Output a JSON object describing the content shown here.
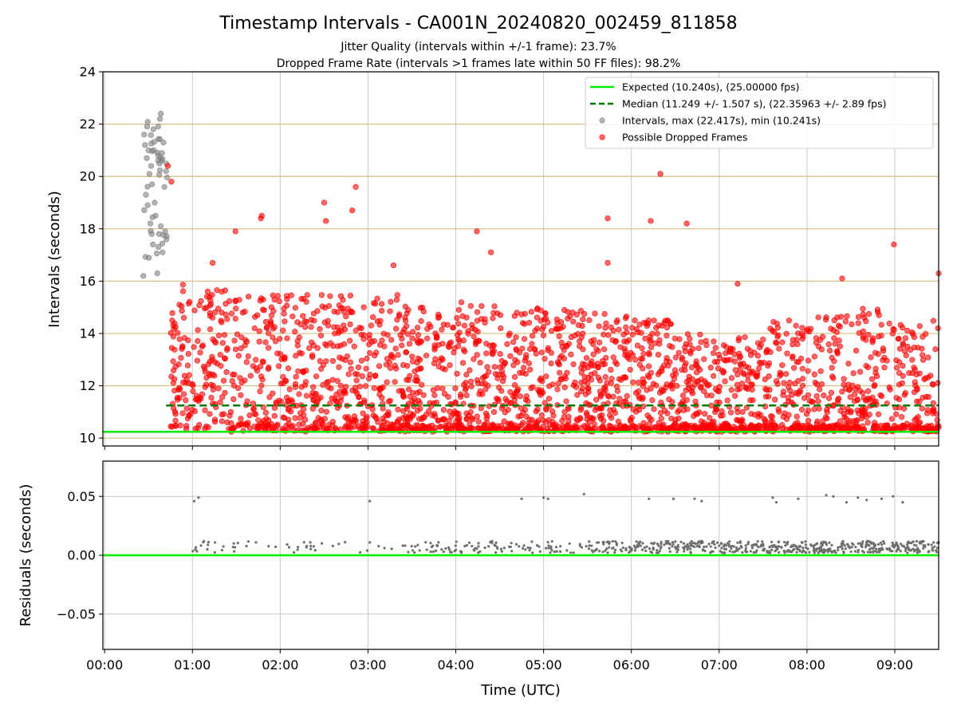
{
  "chart_data": [
    {
      "type": "scatter",
      "title": "Timestamp Intervals - CA001N_20240820_002459_811858",
      "subtitle_lines": [
        "Jitter Quality (intervals within +/-1 frame): 23.7%",
        "Dropped Frame Rate (intervals >1 frames late within 50 FF files): 98.2%"
      ],
      "xlabel": "",
      "ylabel": "Intervals (seconds)",
      "x_unit": "hours UTC",
      "xlim": [
        -0.02,
        9.5
      ],
      "ylim": [
        9.7,
        24
      ],
      "yticks": [
        10,
        12,
        14,
        16,
        18,
        20,
        22,
        24
      ],
      "xticks": [
        0,
        1,
        2,
        3,
        4,
        5,
        6,
        7,
        8,
        9
      ],
      "grid": "horizontal-tan",
      "legend_placement": "top-right",
      "expected_interval": 10.24,
      "median_interval": 11.249,
      "colors": {
        "expected": "#00ee00",
        "median": "#007a00",
        "intervals": "#808080",
        "dropped": "#ff0000",
        "grid_h": "#d6c28a",
        "grid_v": "#c8c8c8"
      },
      "legend": [
        {
          "label": "Expected (10.240s), (25.00000 fps)",
          "kind": "line",
          "color": "#00ee00"
        },
        {
          "label": "Median (11.249 +/- 1.507 s), (22.35963 +/- 2.89 fps)",
          "kind": "dashed",
          "color": "#007a00"
        },
        {
          "label": "Intervals, max (22.417s), min (10.241s)",
          "kind": "dot",
          "color": "#808080"
        },
        {
          "label": "Possible Dropped Frames",
          "kind": "dot",
          "color": "#ff0000"
        }
      ],
      "series": [
        {
          "name": "Intervals",
          "x_range": [
            0.44,
            0.72
          ],
          "y_range": [
            16.2,
            22.4
          ],
          "points": [
            [
              0.44,
              16.2
            ],
            [
              0.45,
              21.6
            ],
            [
              0.46,
              21.2
            ],
            [
              0.47,
              19.3
            ],
            [
              0.48,
              20.7
            ],
            [
              0.49,
              18.9
            ],
            [
              0.5,
              21.0
            ],
            [
              0.51,
              20.1
            ],
            [
              0.52,
              18.2
            ],
            [
              0.53,
              20.4
            ],
            [
              0.54,
              19.7
            ],
            [
              0.55,
              17.4
            ],
            [
              0.56,
              21.0
            ],
            [
              0.57,
              19.0
            ],
            [
              0.58,
              18.5
            ],
            [
              0.6,
              16.3
            ],
            [
              0.61,
              20.8
            ],
            [
              0.62,
              17.8
            ],
            [
              0.63,
              22.2
            ],
            [
              0.64,
              22.4
            ],
            [
              0.65,
              20.6
            ],
            [
              0.66,
              17.1
            ],
            [
              0.67,
              21.3
            ],
            [
              0.68,
              19.6
            ],
            [
              0.7,
              20.2
            ]
          ]
        },
        {
          "name": "Possible Dropped Frames",
          "x_range": [
            0.7,
            9.5
          ],
          "y_range": [
            10.24,
            20.4
          ],
          "notable_points": [
            [
              0.72,
              20.4
            ],
            [
              0.76,
              19.8
            ],
            [
              1.23,
              16.7
            ],
            [
              1.49,
              17.9
            ],
            [
              1.78,
              18.4
            ],
            [
              1.79,
              18.5
            ],
            [
              2.5,
              19.0
            ],
            [
              2.52,
              18.3
            ],
            [
              2.82,
              18.7
            ],
            [
              2.86,
              19.6
            ],
            [
              3.29,
              16.6
            ],
            [
              4.24,
              17.9
            ],
            [
              4.4,
              17.1
            ],
            [
              5.73,
              18.4
            ],
            [
              5.73,
              16.7
            ],
            [
              6.22,
              18.3
            ],
            [
              6.33,
              20.1
            ],
            [
              6.63,
              18.2
            ],
            [
              7.21,
              15.9
            ],
            [
              8.4,
              16.1
            ],
            [
              8.99,
              17.4
            ],
            [
              9.5,
              16.3
            ]
          ],
          "density": [
            {
              "x0": 0.75,
              "x1": 1.0,
              "ymin": 10.3,
              "ymax": 16.0,
              "count": 70
            },
            {
              "x0": 1.0,
              "x1": 1.5,
              "ymin": 10.24,
              "ymax": 15.8,
              "count": 120
            },
            {
              "x0": 1.5,
              "x1": 2.0,
              "ymin": 10.24,
              "ymax": 15.5,
              "count": 110
            },
            {
              "x0": 2.0,
              "x1": 2.5,
              "ymin": 10.24,
              "ymax": 15.6,
              "count": 125
            },
            {
              "x0": 2.5,
              "x1": 3.0,
              "ymin": 10.24,
              "ymax": 15.5,
              "count": 130
            },
            {
              "x0": 3.0,
              "x1": 3.5,
              "ymin": 10.24,
              "ymax": 15.5,
              "count": 135
            },
            {
              "x0": 3.5,
              "x1": 4.0,
              "ymin": 10.24,
              "ymax": 15.0,
              "count": 125
            },
            {
              "x0": 4.0,
              "x1": 4.5,
              "ymin": 10.24,
              "ymax": 15.2,
              "count": 130
            },
            {
              "x0": 4.5,
              "x1": 5.0,
              "ymin": 10.24,
              "ymax": 15.0,
              "count": 125
            },
            {
              "x0": 5.0,
              "x1": 5.5,
              "ymin": 10.24,
              "ymax": 15.0,
              "count": 120
            },
            {
              "x0": 5.5,
              "x1": 6.0,
              "ymin": 10.24,
              "ymax": 14.8,
              "count": 130
            },
            {
              "x0": 6.0,
              "x1": 6.5,
              "ymin": 10.24,
              "ymax": 14.5,
              "count": 130
            },
            {
              "x0": 6.5,
              "x1": 7.0,
              "ymin": 10.24,
              "ymax": 14.0,
              "count": 115
            },
            {
              "x0": 7.0,
              "x1": 7.5,
              "ymin": 10.24,
              "ymax": 14.0,
              "count": 105
            },
            {
              "x0": 7.5,
              "x1": 8.0,
              "ymin": 10.24,
              "ymax": 14.5,
              "count": 100
            },
            {
              "x0": 8.0,
              "x1": 8.5,
              "ymin": 10.24,
              "ymax": 14.7,
              "count": 100
            },
            {
              "x0": 8.5,
              "x1": 9.0,
              "ymin": 10.24,
              "ymax": 15.0,
              "count": 100
            },
            {
              "x0": 9.0,
              "x1": 9.5,
              "ymin": 10.24,
              "ymax": 14.5,
              "count": 95
            }
          ],
          "baseline_band": {
            "x0": 1.0,
            "x1": 9.5,
            "y0": 10.24,
            "y1": 10.5,
            "count": 520
          }
        }
      ]
    },
    {
      "type": "scatter",
      "title": "",
      "xlabel": "Time (UTC)",
      "ylabel": "Residuals (seconds)",
      "xlim": [
        -0.02,
        9.5
      ],
      "ylim": [
        -0.08,
        0.08
      ],
      "yticks": [
        0.05,
        0.0,
        -0.05
      ],
      "ytick_labels": [
        "0.05",
        "0.00",
        "−0.05"
      ],
      "xticks": [
        0,
        1,
        2,
        3,
        4,
        5,
        6,
        7,
        8,
        9
      ],
      "xtick_labels": [
        "00:00",
        "01:00",
        "02:00",
        "03:00",
        "04:00",
        "05:00",
        "06:00",
        "07:00",
        "08:00",
        "09:00"
      ],
      "grid": "both-gray",
      "zero_line": 0.0,
      "series": [
        {
          "name": "Residuals",
          "color": "#6e6e6e",
          "outliers": [
            [
              1.02,
              0.046
            ],
            [
              1.07,
              0.049
            ],
            [
              3.02,
              0.046
            ],
            [
              4.75,
              0.048
            ],
            [
              5.0,
              0.049
            ],
            [
              5.05,
              0.048
            ],
            [
              5.46,
              0.052
            ],
            [
              6.2,
              0.048
            ],
            [
              6.48,
              0.048
            ],
            [
              6.72,
              0.048
            ],
            [
              6.8,
              0.046
            ],
            [
              7.61,
              0.049
            ],
            [
              7.65,
              0.045
            ],
            [
              7.9,
              0.048
            ],
            [
              8.22,
              0.051
            ],
            [
              8.3,
              0.05
            ],
            [
              8.45,
              0.045
            ],
            [
              8.58,
              0.049
            ],
            [
              8.68,
              0.047
            ],
            [
              8.85,
              0.048
            ],
            [
              8.98,
              0.05
            ],
            [
              9.09,
              0.045
            ]
          ],
          "band": {
            "y0": 0.002,
            "y1": 0.012
          },
          "density": [
            {
              "x0": 1.0,
              "x1": 1.5,
              "count": 18
            },
            {
              "x0": 1.5,
              "x1": 2.0,
              "count": 6
            },
            {
              "x0": 2.0,
              "x1": 2.5,
              "count": 14
            },
            {
              "x0": 2.5,
              "x1": 3.0,
              "count": 5
            },
            {
              "x0": 3.0,
              "x1": 3.5,
              "count": 8
            },
            {
              "x0": 3.5,
              "x1": 4.0,
              "count": 25
            },
            {
              "x0": 4.0,
              "x1": 4.5,
              "count": 28
            },
            {
              "x0": 4.5,
              "x1": 5.0,
              "count": 20
            },
            {
              "x0": 5.0,
              "x1": 5.5,
              "count": 22
            },
            {
              "x0": 5.5,
              "x1": 6.0,
              "count": 45
            },
            {
              "x0": 6.0,
              "x1": 6.5,
              "count": 55
            },
            {
              "x0": 6.5,
              "x1": 7.0,
              "count": 60
            },
            {
              "x0": 7.0,
              "x1": 7.5,
              "count": 65
            },
            {
              "x0": 7.5,
              "x1": 8.0,
              "count": 70
            },
            {
              "x0": 8.0,
              "x1": 8.5,
              "count": 70
            },
            {
              "x0": 8.5,
              "x1": 9.0,
              "count": 75
            },
            {
              "x0": 9.0,
              "x1": 9.5,
              "count": 75
            }
          ]
        }
      ]
    }
  ]
}
